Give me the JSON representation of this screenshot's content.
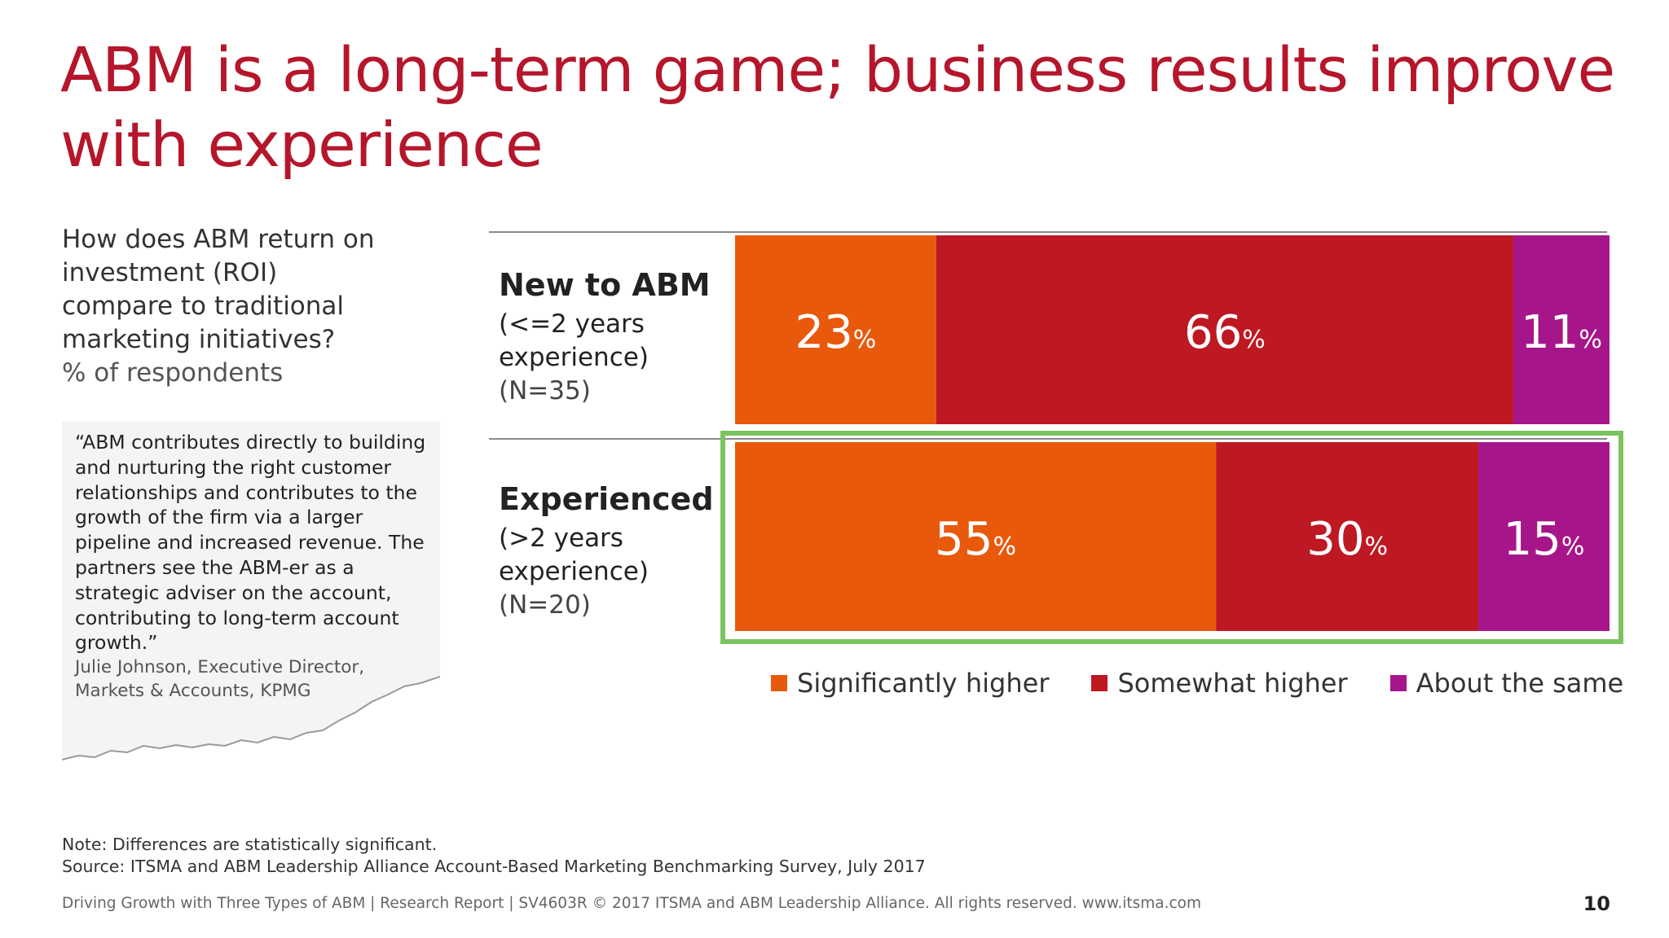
{
  "title_line1": "ABM is a long-term game; business results improve",
  "title_line2": "with experience",
  "question": {
    "lines": [
      "How does ABM return on",
      "investment (ROI)",
      "compare to traditional",
      "marketing initiatives?"
    ],
    "unit": "% of respondents"
  },
  "quote": {
    "text": "“ABM contributes directly to building and nurturing the right customer relationships and contributes to the growth of the firm via a larger pipeline and increased revenue. The partners see the ABM-er as a strategic adviser on the account, contributing to long-term account growth.”",
    "attribution_line1": "Julie Johnson, Executive Director,",
    "attribution_line2": "Markets & Accounts, KPMG"
  },
  "rows": [
    {
      "head": "New to ABM",
      "line1": "(<=2 years",
      "line2": "experience)",
      "n": "(N=35)"
    },
    {
      "head": "Experienced",
      "line1": "(>2 years",
      "line2": "experience)",
      "n": "(N=20)"
    }
  ],
  "chart_data": {
    "type": "bar",
    "orientation": "horizontal-stacked-100",
    "categories": [
      "New to ABM",
      "Experienced"
    ],
    "series": [
      {
        "name": "Significantly higher",
        "values": [
          23,
          55
        ],
        "color": "#e8590c"
      },
      {
        "name": "Somewhat higher",
        "values": [
          66,
          30
        ],
        "color": "#be1823"
      },
      {
        "name": "About the same",
        "values": [
          11,
          15
        ],
        "color": "#a6168a"
      }
    ],
    "value_suffix": "%",
    "xlim": [
      0,
      100
    ],
    "legend_position": "bottom",
    "highlighted_category": "Experienced",
    "highlight_color": "#7ac35f"
  },
  "note": "Note: Differences are statistically significant.",
  "source": "Source: ITSMA and ABM Leadership Alliance Account-Based Marketing Benchmarking Survey, July 2017",
  "footer": "Driving Growth with Three Types of ABM | Research Report | SV4603R © 2017 ITSMA and ABM Leadership Alliance. All rights reserved. www.itsma.com",
  "page_number": "10"
}
